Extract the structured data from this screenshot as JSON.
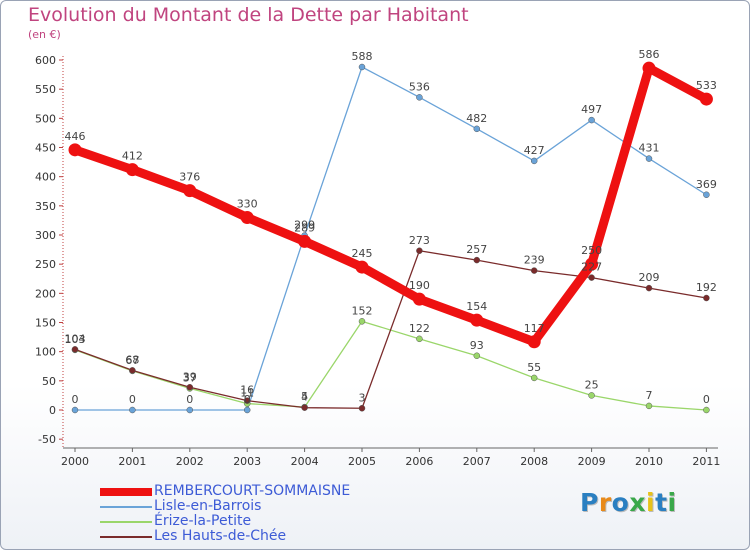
{
  "header": {
    "title": "Evolution du Montant de la Dette par Habitant",
    "unit": "(en €)"
  },
  "brand": {
    "letters": [
      "P",
      "r",
      "o",
      "x",
      "i",
      "t",
      "i"
    ],
    "colors": [
      "#2a7fc1",
      "#e88a1a",
      "#2a7fc1",
      "#3aa84a",
      "#e8c21a",
      "#2a7fc1",
      "#3aa84a"
    ]
  },
  "chart_data": {
    "type": "line",
    "title": "Evolution du Montant de la Dette par Habitant",
    "ylabel": "(en €)",
    "xlabel": "",
    "ylim": [
      -50,
      600
    ],
    "ytick_step": 50,
    "grid": false,
    "categories": [
      "2000",
      "2001",
      "2002",
      "2003",
      "2004",
      "2005",
      "2006",
      "2007",
      "2008",
      "2009",
      "2010",
      "2011"
    ],
    "series": [
      {
        "name": "REMBERCOURT-SOMMAISNE",
        "color": "#ee1111",
        "emphasis": true,
        "values": [
          446,
          412,
          376,
          330,
          289,
          245,
          190,
          154,
          117,
          250,
          586,
          533
        ]
      },
      {
        "name": "Lisle-en-Barrois",
        "color": "#6aa3d8",
        "emphasis": false,
        "values": [
          0,
          0,
          0,
          0,
          299,
          588,
          536,
          482,
          427,
          497,
          431,
          369
        ]
      },
      {
        "name": "Érize-la-Petite",
        "color": "#9ad66a",
        "emphasis": false,
        "values": [
          103,
          67,
          37,
          11,
          5,
          152,
          122,
          93,
          55,
          25,
          7,
          0
        ]
      },
      {
        "name": "Les Hauts-de-Chée",
        "color": "#7a2b2b",
        "emphasis": false,
        "values": [
          104,
          68,
          39,
          16,
          4,
          3,
          273,
          257,
          239,
          227,
          209,
          192
        ]
      }
    ]
  }
}
